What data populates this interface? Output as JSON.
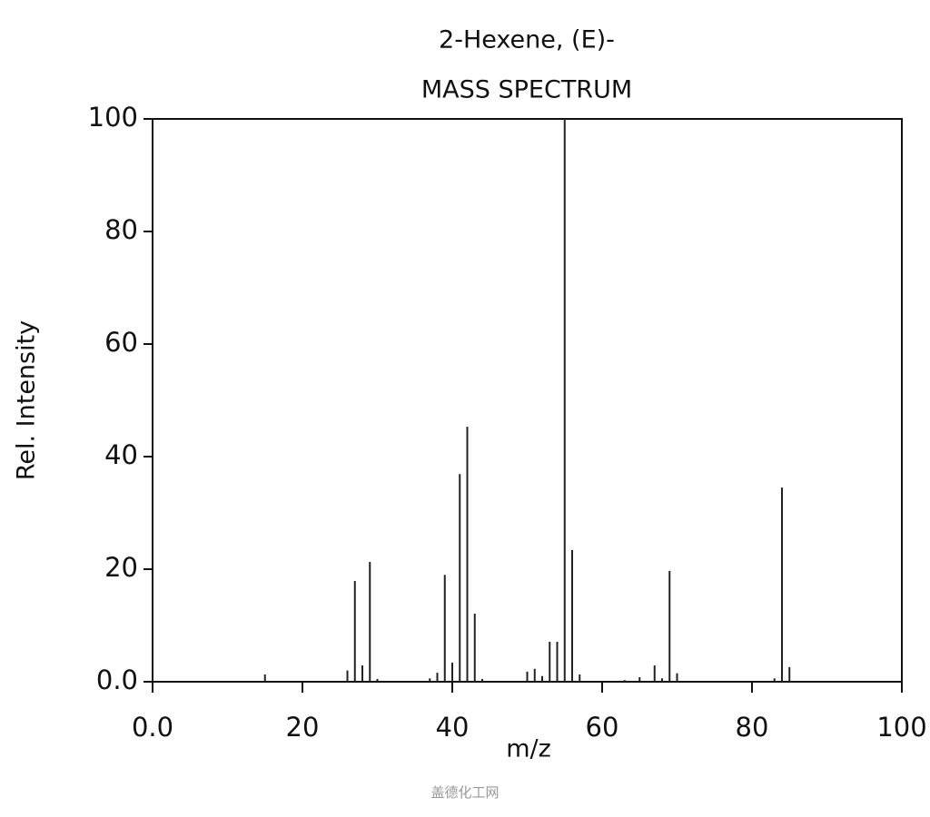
{
  "chart_data": {
    "type": "stem",
    "title": "2-Hexene, (E)-",
    "subtitle": "MASS SPECTRUM",
    "x_label": "m/z",
    "y_label": "Rel. Intensity",
    "watermark": "盖德化工网",
    "color": "#222222",
    "x": [
      15,
      26,
      27,
      28,
      29,
      30,
      37,
      38,
      39,
      40,
      41,
      42,
      43,
      44,
      50,
      51,
      52,
      53,
      54,
      55,
      56,
      57,
      63,
      65,
      67,
      68,
      69,
      70,
      83,
      84,
      85
    ],
    "values": [
      1.3,
      2,
      17.9,
      2.9,
      21.3,
      0.5,
      0.6,
      1.6,
      19,
      3.4,
      36.9,
      45.3,
      12.1,
      0.5,
      1.8,
      2.3,
      1,
      7.1,
      7.1,
      100,
      23.4,
      1.3,
      0.3,
      0.8,
      2.9,
      0.6,
      19.7,
      1.5,
      0.6,
      34.5,
      2.6
    ],
    "xlim": [
      0,
      100
    ],
    "xticks": [
      {
        "value": 0,
        "label": "0.0"
      },
      20,
      40,
      60,
      80,
      100
    ],
    "ylim": [
      0,
      100
    ],
    "yticks": [
      {
        "value": 0,
        "label": "0.0"
      },
      20,
      40,
      60,
      80,
      100
    ]
  }
}
